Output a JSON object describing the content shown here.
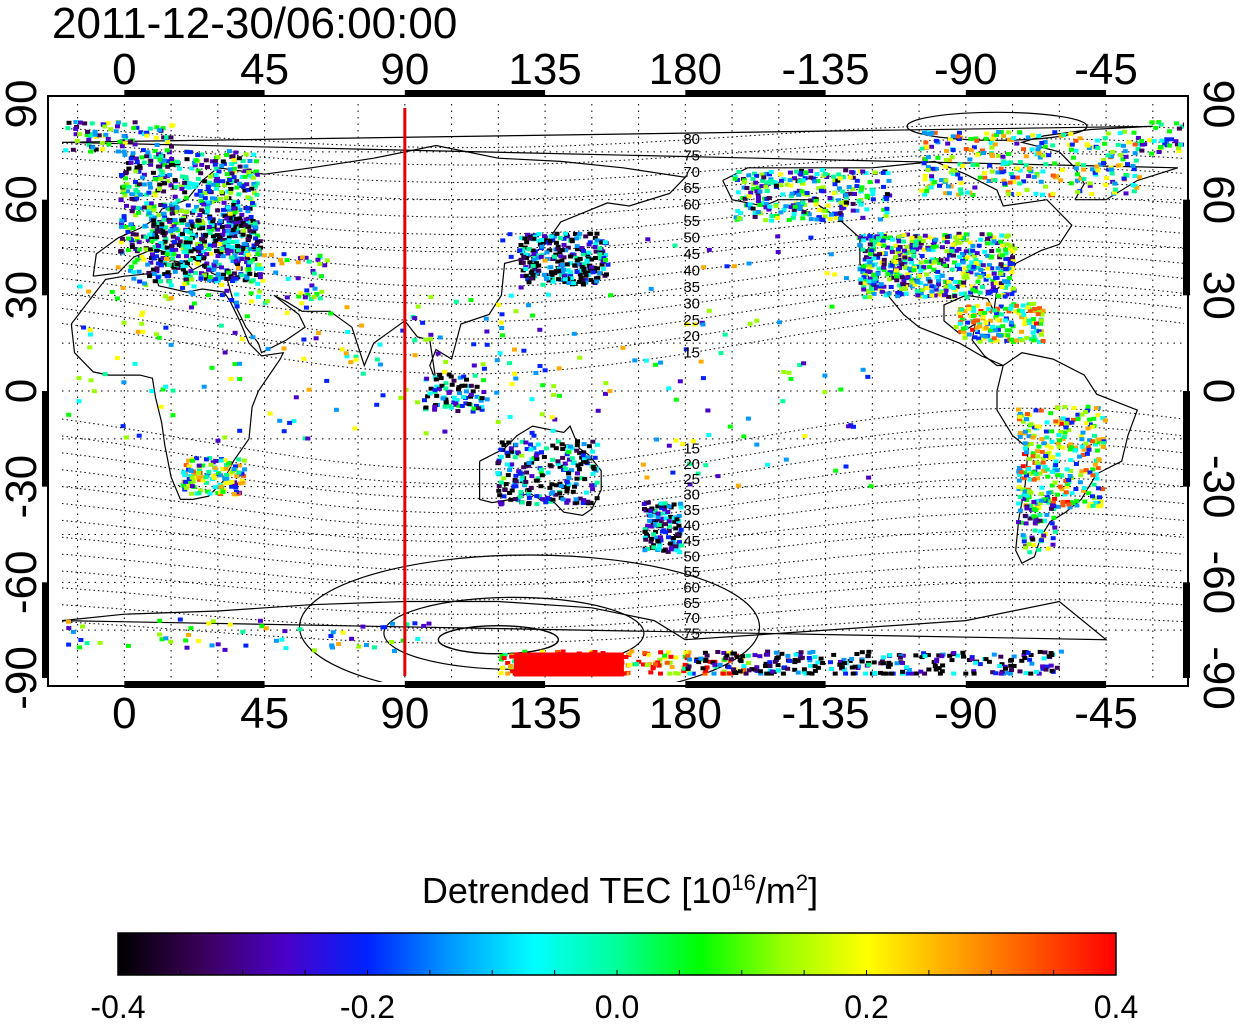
{
  "title": "2011-12-30/06:00:00",
  "map": {
    "top_lon_labels": [
      "0",
      "45",
      "90",
      "135",
      "180",
      "-135",
      "-90",
      "-45"
    ],
    "bottom_lon_labels": [
      "0",
      "45",
      "90",
      "135",
      "180",
      "-135",
      "-90",
      "-45"
    ],
    "lon_values": [
      0,
      45,
      90,
      135,
      180,
      225,
      270,
      315
    ],
    "left_lat_labels": [
      "90",
      "60",
      "30",
      "0",
      "-30",
      "-60",
      "-90"
    ],
    "right_lat_labels": [
      "90",
      "60",
      "30",
      "0",
      "-30",
      "-60",
      "-90"
    ],
    "lat_values": [
      90,
      60,
      30,
      0,
      -30,
      -60,
      -90
    ],
    "lon_range": [
      -20,
      340
    ],
    "lat_range": [
      -90,
      90
    ],
    "grid": "dotted",
    "marker_line_lon": 90,
    "marker_line_color": "#e00000",
    "contour_labels_north": [
      "80",
      "75",
      "70",
      "65",
      "60",
      "55",
      "50",
      "45",
      "40",
      "35",
      "30",
      "25",
      "20",
      "15"
    ],
    "contour_labels_south": [
      "15",
      "20",
      "25",
      "30",
      "35",
      "40",
      "45",
      "50",
      "55",
      "60",
      "65",
      "70",
      "75"
    ]
  },
  "colorbar": {
    "label_text": "Detrended TEC  [10",
    "label_exp1": "16",
    "label_unit": "/m",
    "label_exp2": "2",
    "label_close": "]",
    "ticks": [
      "-0.4",
      "-0.2",
      "0.0",
      "0.2",
      "0.4"
    ],
    "min": -0.4,
    "max": 0.4,
    "colors": [
      "#000000",
      "#3a0058",
      "#4b00c8",
      "#0022ff",
      "#0099ff",
      "#00ffff",
      "#00ff99",
      "#00ff00",
      "#99ff00",
      "#ffff00",
      "#ffaa00",
      "#ff5500",
      "#ff0000"
    ]
  }
}
